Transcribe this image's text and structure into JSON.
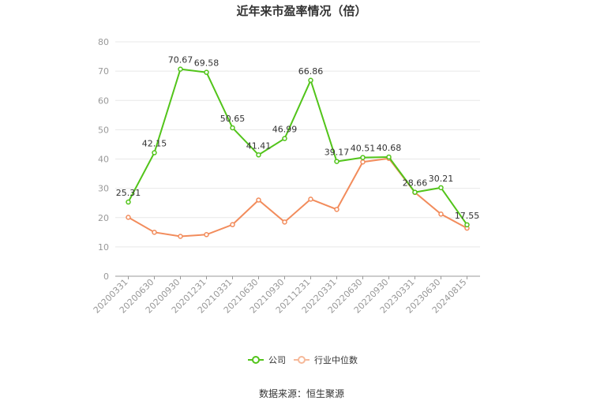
{
  "chart_data": {
    "type": "line",
    "title": "近年来市盈率情况（倍）",
    "categories": [
      "20200331",
      "20200630",
      "20200930",
      "20201231",
      "20210331",
      "20210630",
      "20210930",
      "20211231",
      "20220331",
      "20220630",
      "20220930",
      "20230331",
      "20230630",
      "20240815"
    ],
    "series": [
      {
        "name": "公司",
        "color": "#52c41a",
        "values": [
          25.31,
          42.15,
          70.67,
          69.58,
          50.65,
          41.41,
          46.99,
          66.86,
          39.17,
          40.51,
          40.68,
          28.66,
          30.21,
          17.55
        ],
        "labels": [
          "25.31",
          "42.15",
          "70.67",
          "69.58",
          "50.65",
          "41.41",
          "46.99",
          "66.86",
          "39.17",
          "40.51",
          "40.68",
          "28.66",
          "30.21",
          "17.55"
        ]
      },
      {
        "name": "行业中位数",
        "color": "#f28c5c",
        "values": [
          20.1,
          15.0,
          13.6,
          14.2,
          17.6,
          26.0,
          18.5,
          26.3,
          22.8,
          39.0,
          40.2,
          28.6,
          21.2,
          16.4
        ]
      }
    ],
    "yticks": [
      "0",
      "10",
      "20",
      "30",
      "40",
      "50",
      "60",
      "70",
      "80"
    ],
    "ylim": [
      0,
      80
    ],
    "grid": true,
    "legend": "bottom-center"
  },
  "footer": {
    "source": "数据来源：恒生聚源"
  }
}
